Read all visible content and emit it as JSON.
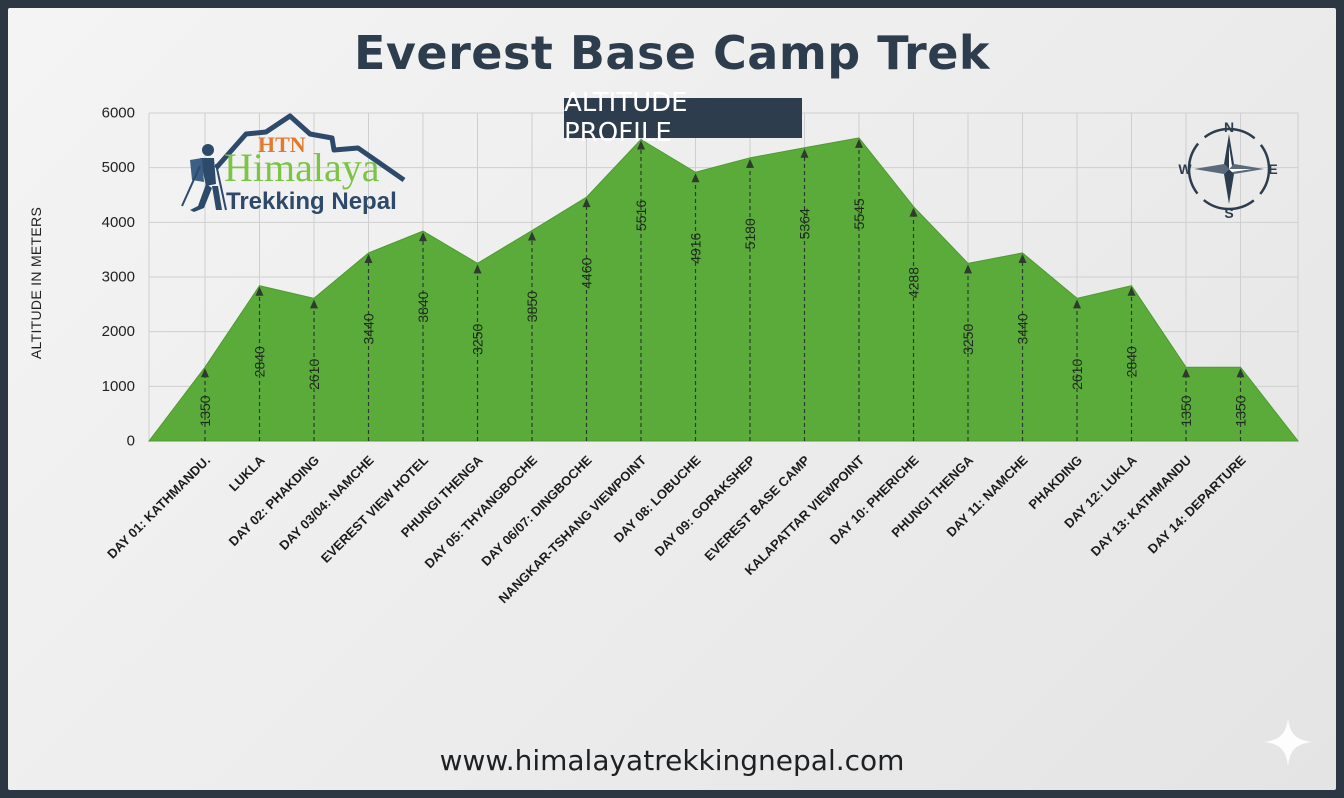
{
  "title": "Everest Base Camp Trek",
  "subtitle": "ALTITUDE PROFILE",
  "footer_url": "www.himalayatrekkingnepal.com",
  "logo": {
    "abbr": "HTN",
    "name_line1": "Himalaya",
    "name_line2": "Trekking Nepal"
  },
  "compass": {
    "n": "N",
    "e": "E",
    "s": "S",
    "w": "W"
  },
  "colors": {
    "area_fill": "#5aab3a",
    "title": "#2e3d4d",
    "logo_orange": "#e07a2c",
    "logo_green": "#7cc445",
    "logo_navy": "#2e4a6b"
  },
  "icons": [
    "hiker-icon",
    "mountain-icon",
    "compass-icon",
    "sparkle-icon"
  ],
  "chart_data": {
    "type": "area",
    "title": "Everest Base Camp Trek",
    "subtitle": "ALTITUDE PROFILE",
    "ylabel": "ALTITUDE IN METERS",
    "xlabel": "",
    "ylim": [
      0,
      6000
    ],
    "yticks": [
      0,
      1000,
      2000,
      3000,
      4000,
      5000,
      6000
    ],
    "grid": true,
    "categories": [
      "DAY 01: KATHMANDU.",
      "LUKLA",
      "DAY 02: PHAKDING",
      "DAY 03/04: NAMCHE",
      "EVEREST VIEW HOTEL",
      "PHUNGI THENGA",
      "DAY 05: THYANGBOCHE",
      "DAY 06/07: DINGBOCHE",
      "NANGKAR-TSHANG VIEWPOINT",
      "DAY 08: LOBUCHE",
      "DAY 09: GORAKSHEP",
      "EVEREST BASE CAMP",
      "KALAPATTAR VIEWPOINT",
      "DAY 10: PHERICHE",
      "PHUNGI THENGA",
      "DAY 11: NAMCHE",
      "PHAKDING",
      "DAY 12: LUKLA",
      "DAY 13: KATHMANDU",
      "DAY 14: DEPARTURE"
    ],
    "values": [
      1350,
      2840,
      2610,
      3440,
      3840,
      3250,
      3850,
      4460,
      5516,
      4916,
      5180,
      5364,
      5545,
      4288,
      3250,
      3440,
      2610,
      2840,
      1350,
      1350
    ]
  }
}
